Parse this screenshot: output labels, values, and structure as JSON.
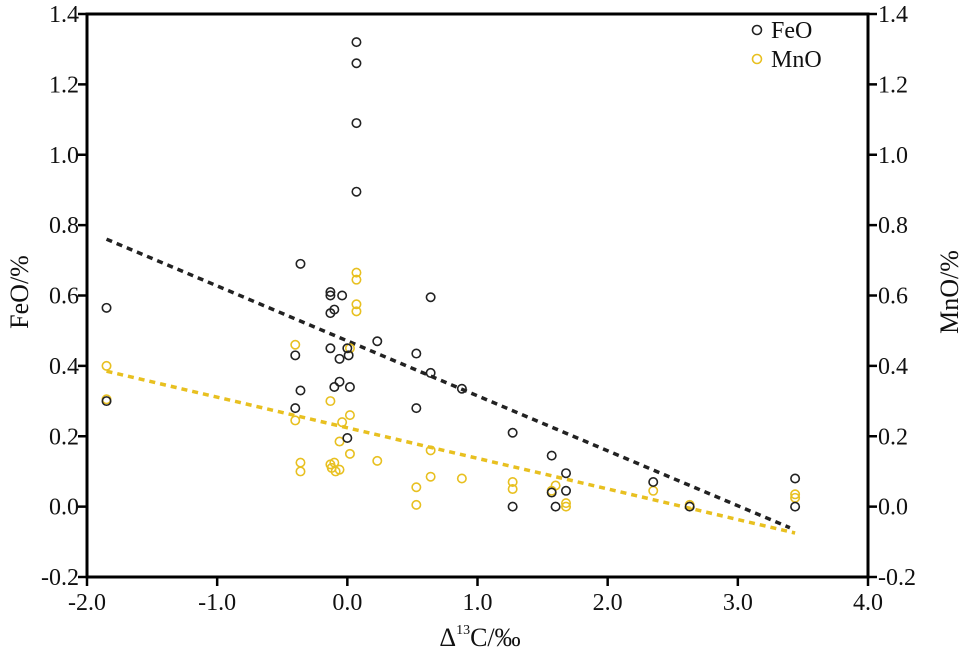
{
  "chart_data": {
    "type": "scatter",
    "x_axis": {
      "label_prefix": "Δ",
      "label_sup": "13",
      "label_suffix": "C/‰",
      "min": -2.0,
      "max": 4.0,
      "ticks": [
        -2.0,
        -1.0,
        0.0,
        1.0,
        2.0,
        3.0,
        4.0
      ],
      "tick_labels": [
        "-2.0",
        "-1.0",
        "0.0",
        "1.0",
        "2.0",
        "3.0",
        "4.0"
      ]
    },
    "y_left": {
      "label": "FeO/%",
      "min": -0.2,
      "max": 1.4,
      "ticks": [
        -0.2,
        0.0,
        0.2,
        0.4,
        0.6,
        0.8,
        1.0,
        1.2,
        1.4
      ],
      "tick_labels": [
        "-0.2",
        "0.0",
        "0.2",
        "0.4",
        "0.6",
        "0.8",
        "1.0",
        "1.2",
        "1.4"
      ]
    },
    "y_right": {
      "label": "MnO/%",
      "min": -0.2,
      "max": 1.4,
      "ticks": [
        -0.2,
        0.0,
        0.2,
        0.4,
        0.6,
        0.8,
        1.0,
        1.2,
        1.4
      ],
      "tick_labels": [
        "-0.2",
        "0.0",
        "0.2",
        "0.4",
        "0.6",
        "0.8",
        "1.0",
        "1.2",
        "1.4"
      ]
    },
    "grid": false,
    "legend_position": "top-right",
    "series": [
      {
        "name": "FeO",
        "color": "#222222",
        "marker": "open-circle",
        "points": [
          [
            -1.85,
            0.565
          ],
          [
            -1.85,
            0.3
          ],
          [
            -0.4,
            0.43
          ],
          [
            -0.4,
            0.28
          ],
          [
            -0.36,
            0.69
          ],
          [
            -0.36,
            0.33
          ],
          [
            -0.13,
            0.61
          ],
          [
            -0.13,
            0.6
          ],
          [
            -0.13,
            0.45
          ],
          [
            -0.13,
            0.55
          ],
          [
            -0.1,
            0.56
          ],
          [
            -0.1,
            0.34
          ],
          [
            -0.06,
            0.42
          ],
          [
            -0.06,
            0.355
          ],
          [
            -0.04,
            0.6
          ],
          [
            0.0,
            0.45
          ],
          [
            0.01,
            0.43
          ],
          [
            0.02,
            0.34
          ],
          [
            0.0,
            0.195
          ],
          [
            0.07,
            1.32
          ],
          [
            0.07,
            1.26
          ],
          [
            0.07,
            1.09
          ],
          [
            0.07,
            0.895
          ],
          [
            0.23,
            0.47
          ],
          [
            0.53,
            0.435
          ],
          [
            0.53,
            0.28
          ],
          [
            0.64,
            0.595
          ],
          [
            0.64,
            0.38
          ],
          [
            0.88,
            0.335
          ],
          [
            1.27,
            0.21
          ],
          [
            1.27,
            0.0
          ],
          [
            1.57,
            0.145
          ],
          [
            1.57,
            0.04
          ],
          [
            1.6,
            0.0
          ],
          [
            1.68,
            0.095
          ],
          [
            1.68,
            0.045
          ],
          [
            2.35,
            0.07
          ],
          [
            2.63,
            0.0
          ],
          [
            3.44,
            0.08
          ],
          [
            3.44,
            0.0
          ]
        ],
        "trend": {
          "x": [
            -1.85,
            3.4
          ],
          "y": [
            0.76,
            -0.06
          ],
          "style": "dashed"
        }
      },
      {
        "name": "MnO",
        "color": "#e8c020",
        "marker": "open-circle",
        "points": [
          [
            -1.85,
            0.4
          ],
          [
            -1.85,
            0.305
          ],
          [
            -0.4,
            0.46
          ],
          [
            -0.4,
            0.245
          ],
          [
            -0.36,
            0.125
          ],
          [
            -0.36,
            0.1
          ],
          [
            -0.13,
            0.3
          ],
          [
            -0.13,
            0.12
          ],
          [
            -0.12,
            0.11
          ],
          [
            -0.1,
            0.125
          ],
          [
            -0.09,
            0.1
          ],
          [
            -0.06,
            0.185
          ],
          [
            -0.06,
            0.105
          ],
          [
            -0.04,
            0.24
          ],
          [
            0.02,
            0.45
          ],
          [
            0.02,
            0.26
          ],
          [
            0.02,
            0.15
          ],
          [
            0.07,
            0.665
          ],
          [
            0.07,
            0.645
          ],
          [
            0.07,
            0.575
          ],
          [
            0.07,
            0.555
          ],
          [
            0.23,
            0.13
          ],
          [
            0.53,
            0.055
          ],
          [
            0.53,
            0.005
          ],
          [
            0.64,
            0.16
          ],
          [
            0.64,
            0.085
          ],
          [
            0.88,
            0.08
          ],
          [
            1.27,
            0.07
          ],
          [
            1.27,
            0.05
          ],
          [
            1.57,
            0.045
          ],
          [
            1.6,
            0.06
          ],
          [
            1.68,
            0.01
          ],
          [
            1.68,
            0.0
          ],
          [
            2.35,
            0.045
          ],
          [
            2.63,
            0.005
          ],
          [
            3.44,
            0.035
          ],
          [
            3.44,
            0.025
          ]
        ],
        "trend": {
          "x": [
            -1.85,
            3.44
          ],
          "y": [
            0.385,
            -0.075
          ],
          "style": "dashed"
        }
      }
    ]
  }
}
